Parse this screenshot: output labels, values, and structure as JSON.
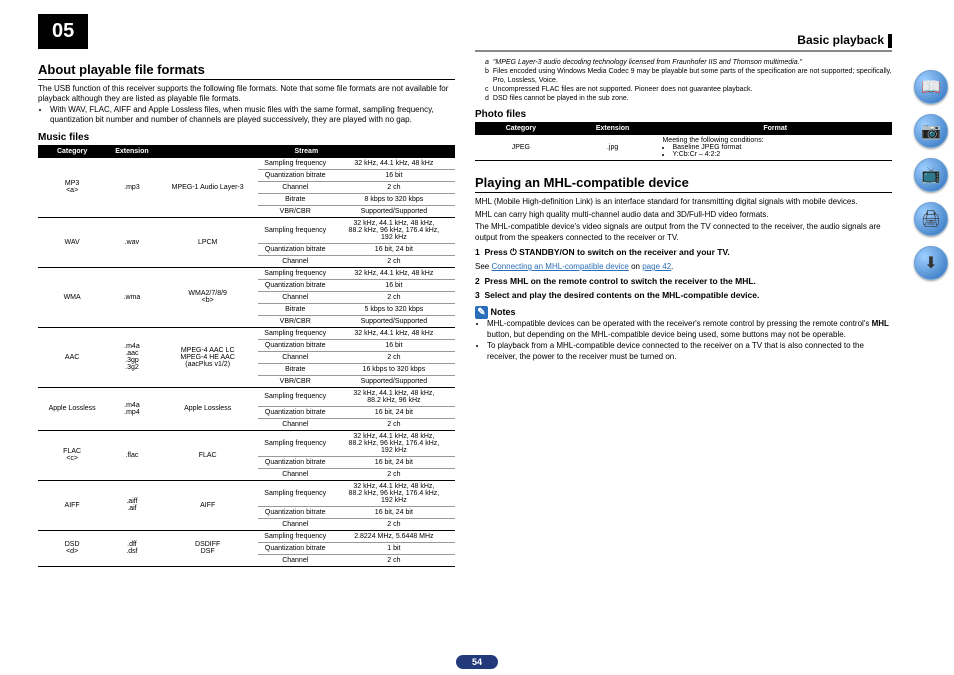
{
  "chapter": "05",
  "breadcrumb": "Basic playback",
  "pagenum": "54",
  "left": {
    "title": "About playable file formats",
    "intro1": "The USB function of this receiver supports the following file formats. Note that some file formats are not available for playback although they are listed as playable file formats.",
    "intro2": "With WAV, FLAC, AIFF and Apple Lossless files, when music files with the same format, sampling frequency, quantization bit number and number of channels are played successively, they are played with no gap.",
    "music_hdr": "Music files",
    "thead": {
      "c1": "Category",
      "c2": "Extension",
      "c3": "Stream"
    },
    "rows": [
      {
        "cat": "MP3\n<a>",
        "ext": ".mp3",
        "stream": "MPEG-1 Audio Layer-3",
        "specs": [
          [
            "Sampling frequency",
            "32 kHz, 44.1 kHz, 48 kHz"
          ],
          [
            "Quantization bitrate",
            "16 bit"
          ],
          [
            "Channel",
            "2 ch"
          ],
          [
            "Bitrate",
            "8 kbps to 320 kbps"
          ],
          [
            "VBR/CBR",
            "Supported/Supported"
          ]
        ]
      },
      {
        "cat": "WAV",
        "ext": ".wav",
        "stream": "LPCM",
        "specs": [
          [
            "Sampling frequency",
            "32 kHz, 44.1 kHz, 48 kHz,\n88.2 kHz, 96 kHz, 176.4 kHz,\n192 kHz"
          ],
          [
            "Quantization bitrate",
            "16 bit, 24 bit"
          ],
          [
            "Channel",
            "2 ch"
          ]
        ]
      },
      {
        "cat": "WMA",
        "ext": ".wma",
        "stream": "WMA2/7/8/9\n<b>",
        "specs": [
          [
            "Sampling frequency",
            "32 kHz, 44.1 kHz, 48 kHz"
          ],
          [
            "Quantization bitrate",
            "16 bit"
          ],
          [
            "Channel",
            "2 ch"
          ],
          [
            "Bitrate",
            "5 kbps to 320 kbps"
          ],
          [
            "VBR/CBR",
            "Supported/Supported"
          ]
        ]
      },
      {
        "cat": "AAC",
        "ext": ".m4a\n.aac\n.3gp\n.3g2",
        "stream": "MPEG-4 AAC LC\nMPEG-4 HE AAC\n(aacPlus v1/2)",
        "specs": [
          [
            "Sampling frequency",
            "32 kHz, 44.1 kHz, 48 kHz"
          ],
          [
            "Quantization bitrate",
            "16 bit"
          ],
          [
            "Channel",
            "2 ch"
          ],
          [
            "Bitrate",
            "16 kbps to 320 kbps"
          ],
          [
            "VBR/CBR",
            "Supported/Supported"
          ]
        ]
      },
      {
        "cat": "Apple Lossless",
        "ext": ".m4a\n.mp4",
        "stream": "Apple Lossless",
        "specs": [
          [
            "Sampling frequency",
            "32 kHz, 44.1 kHz, 48 kHz,\n88.2 kHz, 96 kHz"
          ],
          [
            "Quantization bitrate",
            "16 bit, 24 bit"
          ],
          [
            "Channel",
            "2 ch"
          ]
        ]
      },
      {
        "cat": "FLAC\n<c>",
        "ext": ".flac",
        "stream": "FLAC",
        "specs": [
          [
            "Sampling frequency",
            "32 kHz, 44.1 kHz, 48 kHz,\n88.2 kHz, 96 kHz, 176.4 kHz,\n192 kHz"
          ],
          [
            "Quantization bitrate",
            "16 bit, 24 bit"
          ],
          [
            "Channel",
            "2 ch"
          ]
        ]
      },
      {
        "cat": "AIFF",
        "ext": ".aiff\n.aif",
        "stream": "AIFF",
        "specs": [
          [
            "Sampling frequency",
            "32 kHz, 44.1 kHz, 48 kHz,\n88.2 kHz, 96 kHz, 176.4 kHz,\n192 kHz"
          ],
          [
            "Quantization bitrate",
            "16 bit, 24 bit"
          ],
          [
            "Channel",
            "2 ch"
          ]
        ]
      },
      {
        "cat": "DSD\n<d>",
        "ext": ".dff\n.dsf",
        "stream": "DSDIFF\nDSF",
        "specs": [
          [
            "Sampling frequency",
            "2.8224 MHz, 5.6448 MHz"
          ],
          [
            "Quantization bitrate",
            "1 bit"
          ],
          [
            "Channel",
            "2 ch"
          ]
        ]
      }
    ]
  },
  "right": {
    "footnotes": [
      {
        "k": "a",
        "v": "\"MPEG Layer-3 audio decoding technology licensed from Fraunhofer IIS and Thomson multimedia.\"",
        "italic": true
      },
      {
        "k": "b",
        "v": "Files encoded using Windows Media Codec 9 may be playable but some parts of the specification are not supported; specifically, Pro, Lossless, Voice."
      },
      {
        "k": "c",
        "v": "Uncompressed FLAC files are not supported. Pioneer does not guarantee playback."
      },
      {
        "k": "d",
        "v": "DSD files cannot be played in the sub zone."
      }
    ],
    "photo_hdr": "Photo files",
    "photo_thead": {
      "c1": "Category",
      "c2": "Extension",
      "c3": "Format"
    },
    "photo_row": {
      "cat": "JPEG",
      "ext": ".jpg",
      "fmt_intro": "Meeting the following conditions:",
      "b1": "Baseline JPEG format",
      "b2": "Y:Cb:Cr – 4:2:2"
    },
    "mhl_title": "Playing an MHL-compatible device",
    "mhl_p1": "MHL (Mobile High-definition Link) is an interface standard for transmitting digital signals with mobile devices.",
    "mhl_p2": "MHL can carry high quality multi-channel audio data and 3D/Full-HD video formats.",
    "mhl_p3": "The MHL-compatible device's video signals are output from the TV connected to the receiver, the audio signals are output from the speakers connected to the receiver or TV.",
    "step1_n": "1",
    "step1_b": "Press ⏻ STANDBY/ON to switch on the receiver and your TV.",
    "step1_see": "See ",
    "step1_link": "Connecting an MHL-compatible device",
    "step1_on": " on ",
    "step1_page": "page 42",
    "step1_dot": ".",
    "step2_n": "2",
    "step2_b": "Press MHL on the remote control to switch the receiver to the MHL.",
    "step3_n": "3",
    "step3_b": "Select and play the desired contents on the MHL-compatible device.",
    "notes_label": "Notes",
    "note1a": "MHL-compatible devices can be operated with the receiver's remote control by pressing the remote control's ",
    "note1b": "MHL",
    "note1c": " button, but depending on the MHL-compatible device being used, some buttons may not be operable.",
    "note2": "To playback from a MHL-compatible device connected to the receiver on a TV that is also connected to the receiver, the power to the receiver must be turned on."
  },
  "sidebar": [
    "book",
    "camera",
    "tv",
    "printer",
    "download"
  ]
}
